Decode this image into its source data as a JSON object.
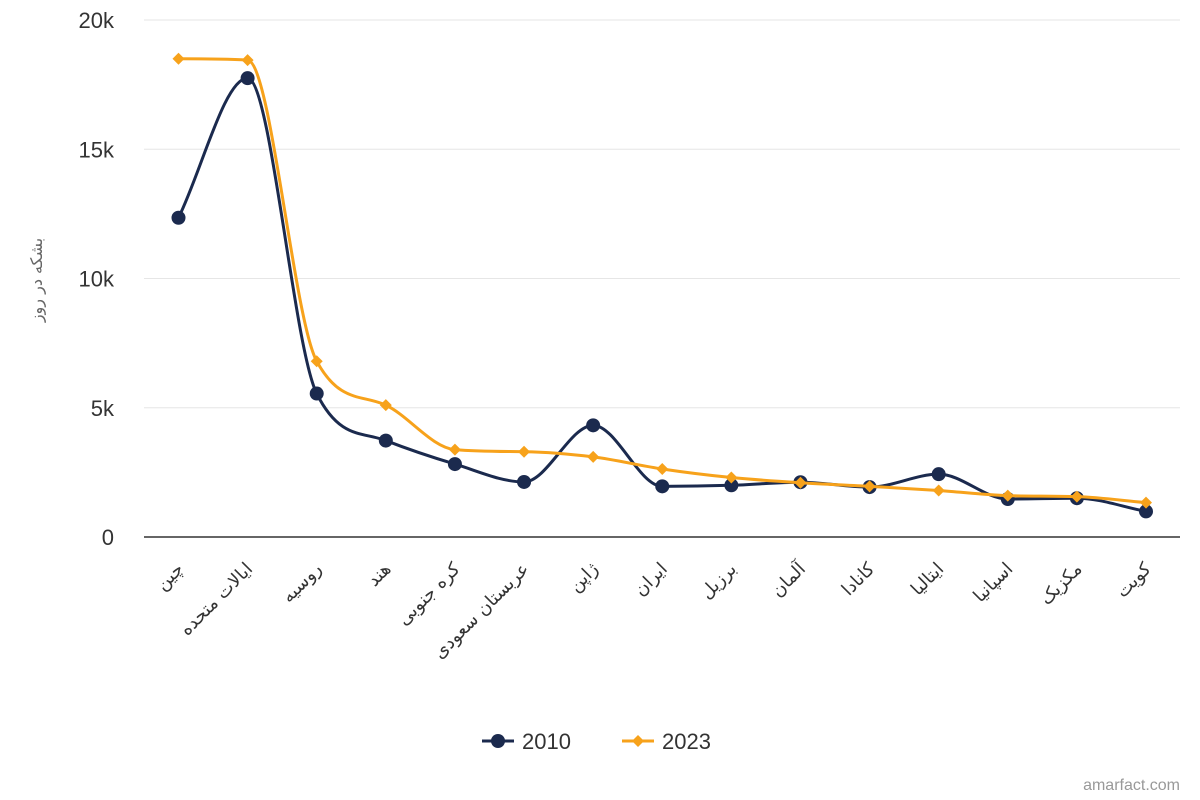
{
  "chart_data": {
    "type": "line",
    "ylabel": "بشکه در روز",
    "ylim": [
      0,
      20000
    ],
    "y_ticks": [
      0,
      5000,
      10000,
      15000,
      20000
    ],
    "y_tick_labels": [
      "0",
      "5k",
      "10k",
      "15k",
      "20k"
    ],
    "grid": true,
    "legend_position": "bottom",
    "categories": [
      "چین",
      "ایالات متحده",
      "روسیه",
      "هند",
      "کره جنوبی",
      "عربستان سعودی",
      "ژاپن",
      "ایران",
      "برزیل",
      "آلمان",
      "کانادا",
      "ایتالیا",
      "اسپانیا",
      "مکزیک",
      "کویت"
    ],
    "series": [
      {
        "name": "2010",
        "color": "#1b2a4e",
        "marker": "circle",
        "values": [
          12350,
          17750,
          5550,
          3730,
          2820,
          2130,
          4320,
          1960,
          2000,
          2120,
          1930,
          2430,
          1470,
          1500,
          990
        ]
      },
      {
        "name": "2023",
        "color": "#f7a21b",
        "marker": "diamond",
        "values": [
          18500,
          18450,
          6800,
          5100,
          3380,
          3300,
          3100,
          2630,
          2300,
          2100,
          1960,
          1800,
          1600,
          1560,
          1330
        ]
      }
    ]
  },
  "credit": "amarfact.com"
}
